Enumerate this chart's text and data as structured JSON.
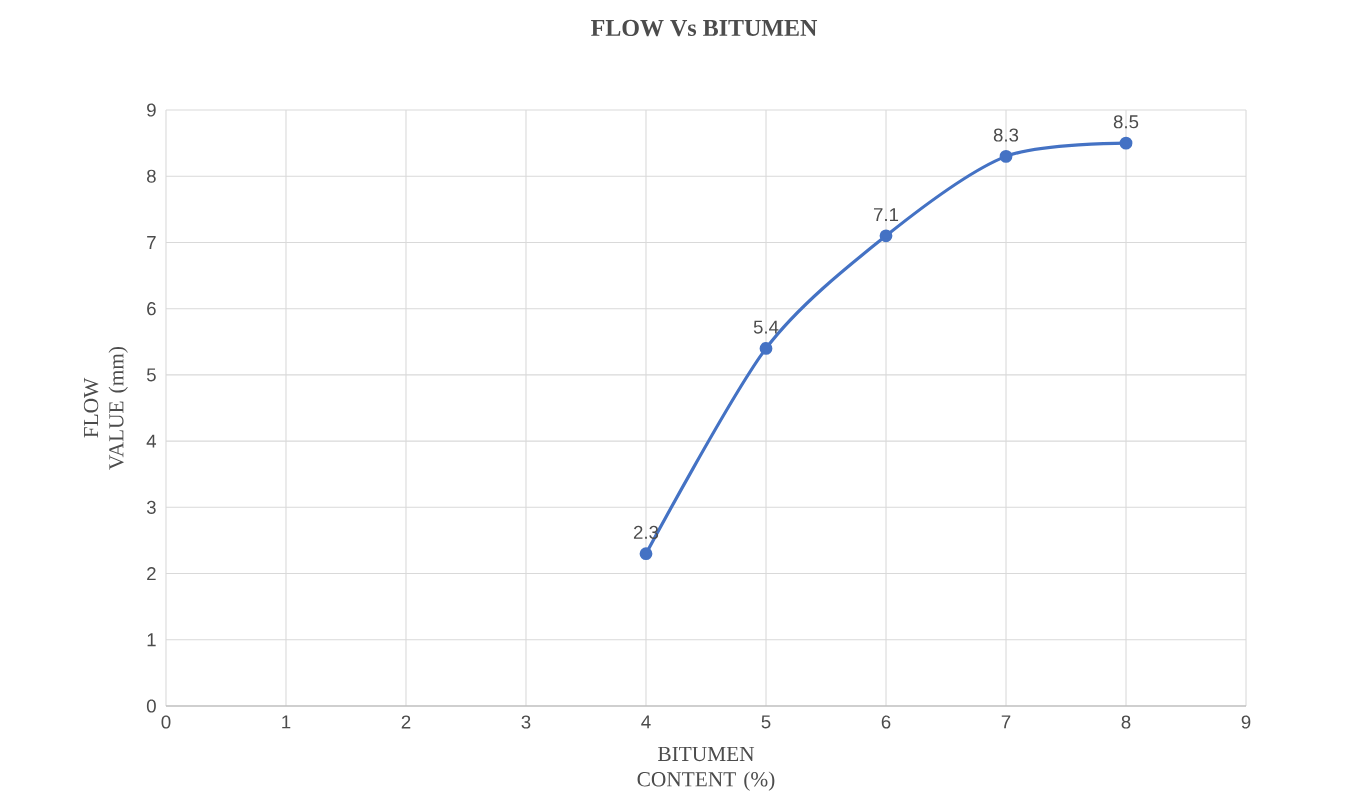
{
  "chart_data": {
    "type": "line",
    "title": "FLOW Vs BITUMEN",
    "xlabel": "BITUMEN CONTENT (%)",
    "ylabel": "FLOW VALUE (mm)",
    "x": [
      4,
      5,
      6,
      7,
      8
    ],
    "series": [
      {
        "color": "#4472c4",
        "values": [
          2.3,
          5.4,
          7.1,
          8.3,
          8.5
        ]
      }
    ],
    "xlim": [
      0,
      9
    ],
    "ylim": [
      0,
      9
    ],
    "xticks": [
      0,
      1,
      2,
      3,
      4,
      5,
      6,
      7,
      8,
      9
    ],
    "yticks": [
      0,
      1,
      2,
      3,
      4,
      5,
      6,
      7,
      8,
      9
    ],
    "grid": true,
    "marker": "circle",
    "line_style": "solid",
    "data_labels": true
  }
}
